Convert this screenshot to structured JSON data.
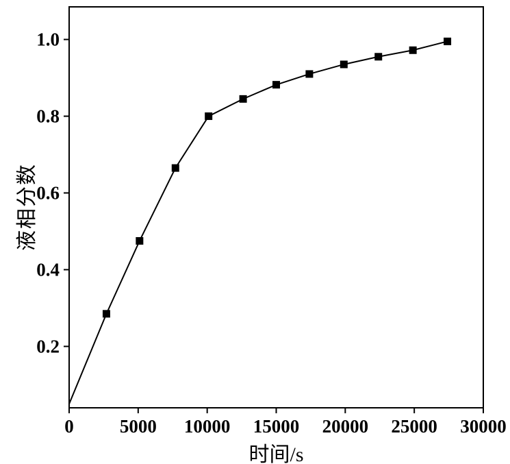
{
  "figure": {
    "background": "#ffffff",
    "frame_color": "#000000"
  },
  "chart_data": {
    "type": "line",
    "title": "",
    "xlabel": "时间/s",
    "ylabel": "液相分数",
    "xlim": [
      0,
      30000
    ],
    "ylim": [
      0.04,
      1.085
    ],
    "xticks": [
      0,
      5000,
      10000,
      15000,
      20000,
      25000,
      30000
    ],
    "xtick_labels": [
      "0",
      "5000",
      "10000",
      "15000",
      "20000",
      "25000",
      "30000"
    ],
    "yticks": [
      0.2,
      0.4,
      0.6,
      0.8,
      1.0
    ],
    "ytick_labels": [
      "0.2",
      "0.4",
      "0.6",
      "0.8",
      "1.0"
    ],
    "grid": false,
    "legend": "none",
    "line_color": "#000000",
    "marker": "square",
    "marker_size": 11,
    "points": [
      {
        "x": 0,
        "y": 0.05,
        "marker": false
      },
      {
        "x": 2700,
        "y": 0.285,
        "marker": true
      },
      {
        "x": 5100,
        "y": 0.475,
        "marker": true
      },
      {
        "x": 7700,
        "y": 0.665,
        "marker": true
      },
      {
        "x": 10100,
        "y": 0.8,
        "marker": true
      },
      {
        "x": 12600,
        "y": 0.845,
        "marker": true
      },
      {
        "x": 15000,
        "y": 0.882,
        "marker": true
      },
      {
        "x": 17400,
        "y": 0.91,
        "marker": true
      },
      {
        "x": 19900,
        "y": 0.935,
        "marker": true
      },
      {
        "x": 22400,
        "y": 0.955,
        "marker": true
      },
      {
        "x": 24900,
        "y": 0.972,
        "marker": true
      },
      {
        "x": 27400,
        "y": 0.995,
        "marker": true
      }
    ]
  }
}
